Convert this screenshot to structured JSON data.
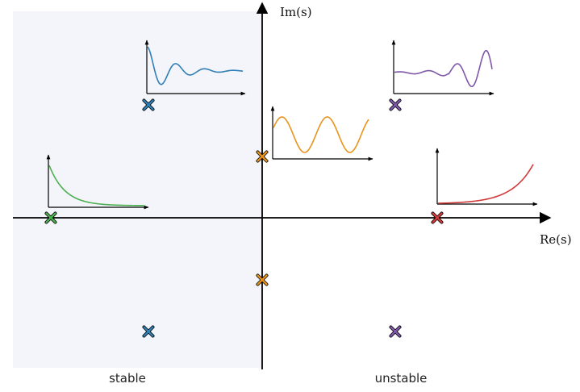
{
  "axes": {
    "x_label": "Re(s)",
    "y_label": "Im(s)"
  },
  "regions": {
    "stable_label": "stable",
    "unstable_label": "unstable",
    "stable_fill": "#f4f5fa"
  },
  "poles": [
    {
      "name": "pole-decay",
      "color": "#4caf50"
    },
    {
      "name": "pole-damped-upper",
      "color": "#2f7fb5"
    },
    {
      "name": "pole-damped-lower",
      "color": "#2f7fb5"
    },
    {
      "name": "pole-oscillation-upper",
      "color": "#e8931c"
    },
    {
      "name": "pole-oscillation-lower",
      "color": "#e8931c"
    },
    {
      "name": "pole-growth",
      "color": "#d23a3a"
    },
    {
      "name": "pole-growing-oscillation-upper",
      "color": "#7e57a8"
    },
    {
      "name": "pole-growing-oscillation-lower",
      "color": "#7e57a8"
    }
  ],
  "responses": [
    {
      "name": "response-exponential-decay",
      "color": "#4caf50"
    },
    {
      "name": "response-damped-oscillation",
      "color": "#2f7fb5"
    },
    {
      "name": "response-sustained-oscillation",
      "color": "#e8931c"
    },
    {
      "name": "response-exponential-growth",
      "color": "#d23a3a"
    },
    {
      "name": "response-growing-oscillation",
      "color": "#7e57a8"
    }
  ]
}
